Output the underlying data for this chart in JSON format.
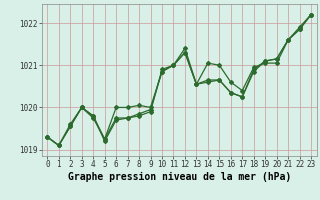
{
  "x": [
    0,
    1,
    2,
    3,
    4,
    5,
    6,
    7,
    8,
    9,
    10,
    11,
    12,
    13,
    14,
    15,
    16,
    17,
    18,
    19,
    20,
    21,
    22,
    23
  ],
  "line1": [
    1019.3,
    1019.1,
    1019.6,
    1020.0,
    1019.8,
    1019.2,
    1019.7,
    1019.75,
    1019.8,
    1019.9,
    1020.9,
    1021.0,
    1021.3,
    1020.55,
    1020.6,
    1020.65,
    1020.35,
    1020.25,
    1020.85,
    1021.1,
    1021.15,
    1021.6,
    1021.85,
    1022.2
  ],
  "line2": [
    1019.3,
    1019.1,
    1019.55,
    1020.0,
    1019.8,
    1019.25,
    1019.75,
    1019.75,
    1019.85,
    1019.95,
    1020.85,
    1021.0,
    1021.3,
    1020.55,
    1021.05,
    1021.0,
    1020.6,
    1020.4,
    1020.95,
    1021.05,
    1021.05,
    1021.6,
    1021.85,
    1022.2
  ],
  "line3": [
    1019.3,
    1019.1,
    1019.55,
    1020.0,
    1019.75,
    1019.25,
    1020.0,
    1020.0,
    1020.05,
    1020.0,
    1020.85,
    1021.0,
    1021.4,
    1020.55,
    1020.65,
    1020.65,
    1020.35,
    1020.25,
    1020.9,
    1021.1,
    1021.15,
    1021.6,
    1021.9,
    1022.2
  ],
  "line_color": "#2d6a2d",
  "bg_color": "#d8f0e8",
  "grid_color": "#cc9999",
  "xlabel": "Graphe pression niveau de la mer (hPa)",
  "ylim": [
    1018.85,
    1022.45
  ],
  "yticks": [
    1019,
    1020,
    1021,
    1022
  ],
  "xticks": [
    0,
    1,
    2,
    3,
    4,
    5,
    6,
    7,
    8,
    9,
    10,
    11,
    12,
    13,
    14,
    15,
    16,
    17,
    18,
    19,
    20,
    21,
    22,
    23
  ],
  "xlabel_fontsize": 7.0,
  "tick_fontsize": 5.5
}
